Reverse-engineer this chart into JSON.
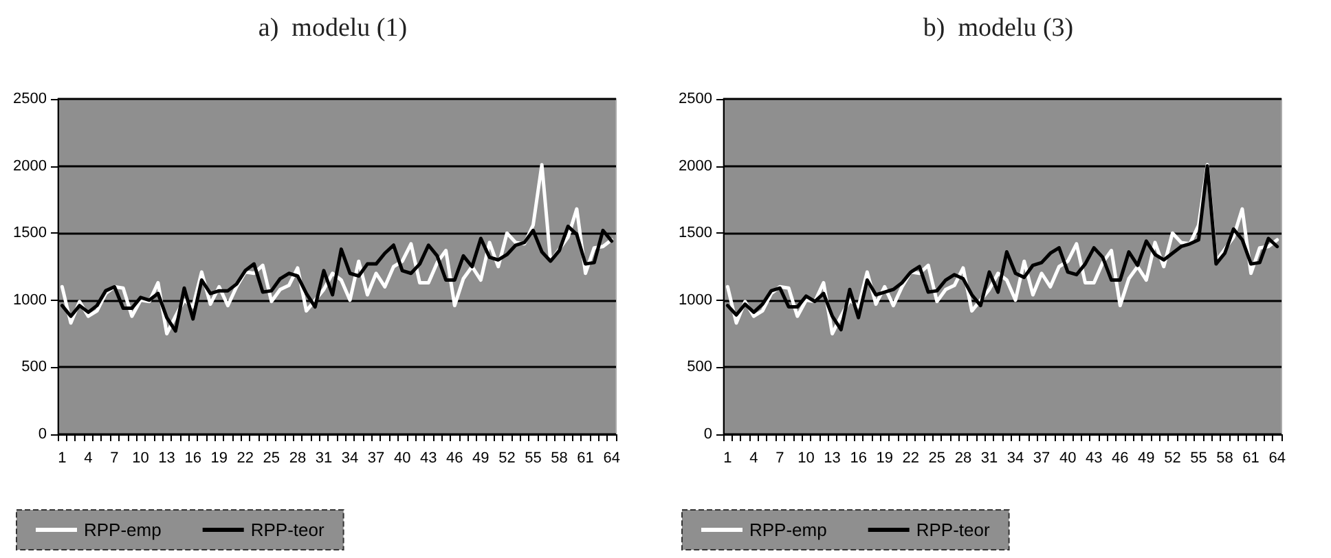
{
  "chart_data": [
    {
      "type": "line",
      "title": "a)  modelu (1)",
      "categories": [
        "1",
        null,
        null,
        "4",
        null,
        null,
        "7",
        null,
        null,
        "10",
        null,
        null,
        "13",
        null,
        null,
        "16",
        null,
        null,
        "19",
        null,
        null,
        "22",
        null,
        null,
        "25",
        null,
        null,
        "28",
        null,
        null,
        "31",
        null,
        null,
        "34",
        null,
        null,
        "37",
        null,
        null,
        "40",
        null,
        null,
        "43",
        null,
        null,
        "46",
        null,
        null,
        "49",
        null,
        null,
        "52",
        null,
        null,
        "55",
        null,
        null,
        "58",
        null,
        null,
        "61",
        null,
        null,
        "64"
      ],
      "series": [
        {
          "name": "RPP-emp",
          "color": "#ffffff",
          "values": [
            1100,
            830,
            990,
            880,
            920,
            1050,
            1100,
            1090,
            880,
            1000,
            990,
            1130,
            750,
            880,
            1000,
            950,
            1210,
            970,
            1100,
            960,
            1100,
            1210,
            1200,
            1260,
            990,
            1080,
            1110,
            1240,
            920,
            1000,
            1080,
            1200,
            1150,
            1000,
            1290,
            1040,
            1200,
            1100,
            1250,
            1290,
            1420,
            1130,
            1130,
            1280,
            1370,
            960,
            1160,
            1250,
            1150,
            1430,
            1250,
            1500,
            1430,
            1420,
            1560,
            2010,
            1290,
            1380,
            1470,
            1680,
            1200,
            1390,
            1400,
            1450
          ]
        },
        {
          "name": "RPP-teor",
          "color": "#000000",
          "values": [
            960,
            880,
            960,
            910,
            960,
            1070,
            1100,
            940,
            940,
            1020,
            1000,
            1050,
            870,
            770,
            1090,
            860,
            1150,
            1050,
            1070,
            1070,
            1120,
            1220,
            1270,
            1060,
            1070,
            1160,
            1200,
            1180,
            1050,
            950,
            1220,
            1040,
            1380,
            1200,
            1180,
            1270,
            1270,
            1350,
            1410,
            1220,
            1200,
            1270,
            1410,
            1330,
            1150,
            1150,
            1330,
            1250,
            1460,
            1320,
            1300,
            1340,
            1410,
            1430,
            1520,
            1360,
            1290,
            1370,
            1550,
            1490,
            1270,
            1280,
            1520,
            1440
          ]
        }
      ],
      "ylim": [
        0,
        2500
      ],
      "yticks": [
        0,
        500,
        1000,
        1500,
        2000,
        2500
      ],
      "grid": "y",
      "legend": "bottom left",
      "marker": "none",
      "line_style": "solid"
    },
    {
      "type": "line",
      "title": "b)  modelu (3)",
      "categories": [
        "1",
        null,
        null,
        "4",
        null,
        null,
        "7",
        null,
        null,
        "10",
        null,
        null,
        "13",
        null,
        null,
        "16",
        null,
        null,
        "19",
        null,
        null,
        "22",
        null,
        null,
        "25",
        null,
        null,
        "28",
        null,
        null,
        "31",
        null,
        null,
        "34",
        null,
        null,
        "37",
        null,
        null,
        "40",
        null,
        null,
        "43",
        null,
        null,
        "46",
        null,
        null,
        "49",
        null,
        null,
        "52",
        null,
        null,
        "55",
        null,
        null,
        "58",
        null,
        null,
        "61",
        null,
        null,
        "64"
      ],
      "series": [
        {
          "name": "RPP-emp",
          "color": "#ffffff",
          "values": [
            1100,
            830,
            990,
            880,
            920,
            1050,
            1100,
            1090,
            880,
            1000,
            990,
            1130,
            750,
            880,
            1000,
            950,
            1210,
            970,
            1100,
            960,
            1100,
            1210,
            1200,
            1260,
            990,
            1080,
            1110,
            1240,
            920,
            1000,
            1080,
            1200,
            1150,
            1000,
            1290,
            1040,
            1200,
            1100,
            1250,
            1290,
            1420,
            1130,
            1130,
            1280,
            1370,
            960,
            1160,
            1250,
            1150,
            1430,
            1250,
            1500,
            1430,
            1420,
            1560,
            2010,
            1290,
            1380,
            1470,
            1680,
            1200,
            1390,
            1400,
            1450
          ]
        },
        {
          "name": "RPP-teor",
          "color": "#000000",
          "values": [
            960,
            890,
            970,
            910,
            970,
            1070,
            1090,
            950,
            950,
            1030,
            990,
            1050,
            880,
            780,
            1080,
            870,
            1150,
            1040,
            1060,
            1080,
            1130,
            1210,
            1250,
            1060,
            1070,
            1150,
            1190,
            1160,
            1040,
            960,
            1210,
            1060,
            1360,
            1200,
            1170,
            1260,
            1280,
            1350,
            1390,
            1210,
            1190,
            1270,
            1390,
            1320,
            1150,
            1150,
            1360,
            1260,
            1440,
            1340,
            1300,
            1350,
            1400,
            1420,
            1450,
            2000,
            1270,
            1350,
            1530,
            1450,
            1270,
            1280,
            1460,
            1400
          ]
        }
      ],
      "ylim": [
        0,
        2500
      ],
      "yticks": [
        0,
        500,
        1000,
        1500,
        2000,
        2500
      ],
      "grid": "y",
      "legend": "bottom left",
      "marker": "none",
      "line_style": "solid"
    }
  ]
}
